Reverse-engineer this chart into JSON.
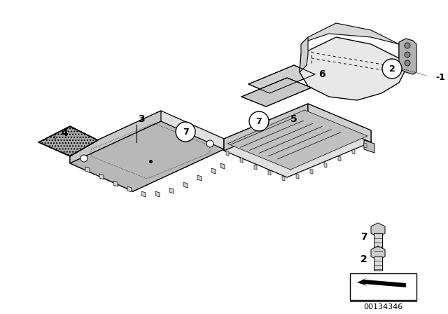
{
  "bg_color": "#ffffff",
  "part_number": "00134346",
  "line_color": "#000000",
  "fill_light": "#e8e8e8",
  "fill_mid": "#d0d0d0",
  "fill_dark": "#b0b0b0",
  "fill_hatch": "#888888"
}
